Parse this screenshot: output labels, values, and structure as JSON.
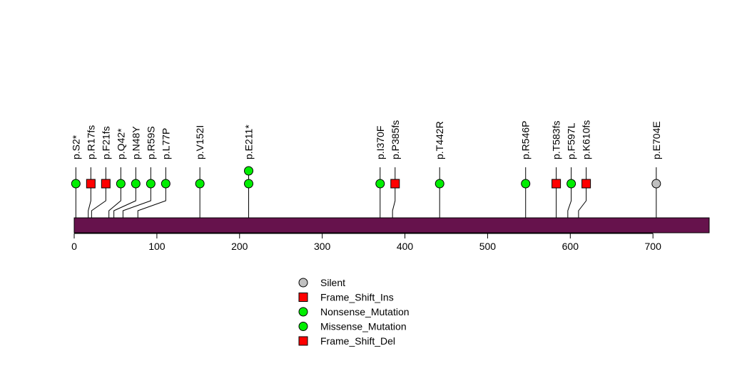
{
  "chart_data": {
    "type": "lollipop",
    "protein_length": 768,
    "xlim": [
      0,
      768
    ],
    "x_ticks": [
      0,
      100,
      200,
      300,
      400,
      500,
      600,
      700
    ],
    "x_tick_labels": [
      "0",
      "100",
      "200",
      "300",
      "400",
      "500",
      "600",
      "700"
    ],
    "domain_color": "#66124c",
    "colors": {
      "Silent": "#c0c0c0",
      "Frame_Shift_Ins": "#ff0000",
      "Nonsense_Mutation": "#00ee00",
      "Missense_Mutation": "#00ee00",
      "Frame_Shift_Del": "#ff0000"
    },
    "mutations": [
      {
        "label": "p.S2*",
        "position": 2,
        "type": "Nonsense_Mutation",
        "count": 1
      },
      {
        "label": "p.R17fs",
        "position": 17,
        "type": "Frame_Shift_Ins",
        "count": 1
      },
      {
        "label": "p.F21fs",
        "position": 21,
        "type": "Frame_Shift_Ins",
        "count": 1
      },
      {
        "label": "p.Q42*",
        "position": 42,
        "type": "Nonsense_Mutation",
        "count": 1
      },
      {
        "label": "p.N48Y",
        "position": 48,
        "type": "Missense_Mutation",
        "count": 1
      },
      {
        "label": "p.R59S",
        "position": 59,
        "type": "Missense_Mutation",
        "count": 1
      },
      {
        "label": "p.L77P",
        "position": 77,
        "type": "Missense_Mutation",
        "count": 1
      },
      {
        "label": "p.V152I",
        "position": 152,
        "type": "Missense_Mutation",
        "count": 1
      },
      {
        "label": "p.E211*",
        "position": 211,
        "type": "Nonsense_Mutation",
        "count": 2
      },
      {
        "label": "p.I370F",
        "position": 370,
        "type": "Missense_Mutation",
        "count": 1
      },
      {
        "label": "p.P385fs",
        "position": 385,
        "type": "Frame_Shift_Del",
        "count": 1
      },
      {
        "label": "p.T442R",
        "position": 442,
        "type": "Missense_Mutation",
        "count": 1
      },
      {
        "label": "p.R546P",
        "position": 546,
        "type": "Missense_Mutation",
        "count": 1
      },
      {
        "label": "p.T583fs",
        "position": 583,
        "type": "Frame_Shift_Del",
        "count": 1
      },
      {
        "label": "p.F597L",
        "position": 597,
        "type": "Missense_Mutation",
        "count": 1
      },
      {
        "label": "p.K610fs",
        "position": 610,
        "type": "Frame_Shift_Del",
        "count": 1
      },
      {
        "label": "p.E704E",
        "position": 704,
        "type": "Silent",
        "count": 1
      }
    ],
    "legend": [
      {
        "label": "Silent",
        "shape": "circle",
        "type": "Silent"
      },
      {
        "label": "Frame_Shift_Ins",
        "shape": "square",
        "type": "Frame_Shift_Ins"
      },
      {
        "label": "Nonsense_Mutation",
        "shape": "circle",
        "type": "Nonsense_Mutation"
      },
      {
        "label": "Missense_Mutation",
        "shape": "circle",
        "type": "Missense_Mutation"
      },
      {
        "label": "Frame_Shift_Del",
        "shape": "square",
        "type": "Frame_Shift_Del"
      }
    ]
  }
}
